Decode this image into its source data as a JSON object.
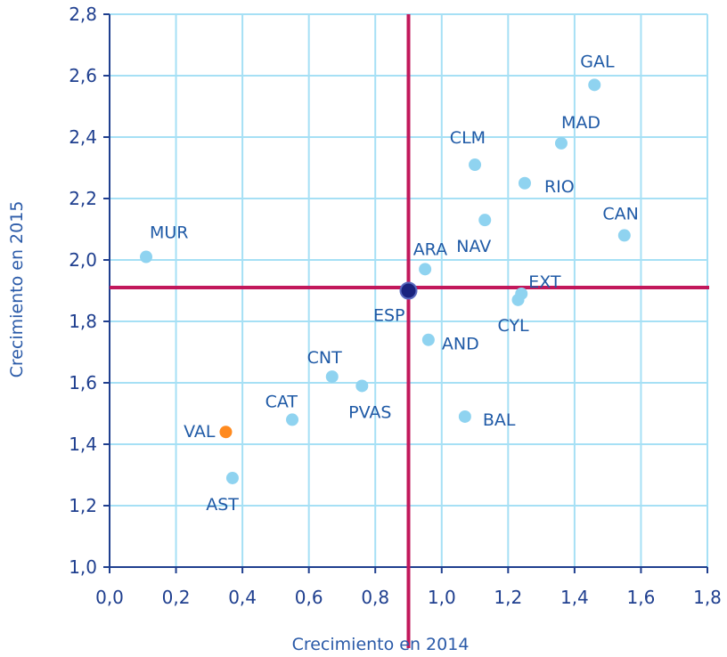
{
  "chart_data": {
    "type": "scatter",
    "xlabel": "Crecimiento en 2014",
    "ylabel": "Crecimiento en 2015",
    "xlim": [
      0.0,
      1.8
    ],
    "ylim": [
      1.0,
      2.8
    ],
    "xticks": [
      "0,0",
      "0,2",
      "0,4",
      "0,6",
      "0,8",
      "1,0",
      "1,2",
      "1,4",
      "1,6",
      "1,8"
    ],
    "yticks": [
      "1,0",
      "1,2",
      "1,4",
      "1,6",
      "1,8",
      "2,0",
      "2,2",
      "2,4",
      "2,6",
      "2,8"
    ],
    "grid": true,
    "reference_lines": {
      "x": 0.9,
      "y": 1.91,
      "color": "#c2185b"
    },
    "colors": {
      "point": "#8fd3f0",
      "highlight": "#ff8a1f",
      "reference_point": "#1a237e",
      "grid": "#a6e0f5",
      "axis": "#1f3f8f"
    },
    "points": [
      {
        "label": "GAL",
        "x": 1.46,
        "y": 2.57,
        "anchor": "start",
        "dx": -16,
        "dy": -20
      },
      {
        "label": "MAD",
        "x": 1.36,
        "y": 2.38,
        "anchor": "start",
        "dx": 0,
        "dy": -17
      },
      {
        "label": "CLM",
        "x": 1.1,
        "y": 2.31,
        "anchor": "end",
        "dx": 12,
        "dy": -24
      },
      {
        "label": "RIO",
        "x": 1.25,
        "y": 2.25,
        "anchor": "start",
        "dx": 22,
        "dy": 10
      },
      {
        "label": "CAN",
        "x": 1.55,
        "y": 2.08,
        "anchor": "end",
        "dx": 16,
        "dy": -18
      },
      {
        "label": "NAV",
        "x": 1.13,
        "y": 2.13,
        "anchor": "end",
        "dx": 7,
        "dy": 36
      },
      {
        "label": "MUR",
        "x": 0.11,
        "y": 2.01,
        "anchor": "start",
        "dx": 4,
        "dy": -21
      },
      {
        "label": "ARA",
        "x": 0.95,
        "y": 1.97,
        "anchor": "end",
        "dx": 25,
        "dy": -16
      },
      {
        "label": "EXT",
        "x": 1.24,
        "y": 1.89,
        "anchor": "start",
        "dx": 8,
        "dy": -7
      },
      {
        "label": "CYL",
        "x": 1.23,
        "y": 1.87,
        "anchor": "start",
        "dx": -23,
        "dy": 35
      },
      {
        "label": "ESP",
        "x": 0.9,
        "y": 1.9,
        "anchor": "end",
        "dx": -4,
        "dy": 34,
        "type": "reference"
      },
      {
        "label": "AND",
        "x": 0.96,
        "y": 1.74,
        "anchor": "start",
        "dx": 15,
        "dy": 11
      },
      {
        "label": "CNT",
        "x": 0.67,
        "y": 1.62,
        "anchor": "end",
        "dx": 11,
        "dy": -15
      },
      {
        "label": "PVAS",
        "x": 0.76,
        "y": 1.59,
        "anchor": "middle",
        "dx": 9,
        "dy": 36
      },
      {
        "label": "CAT",
        "x": 0.55,
        "y": 1.48,
        "anchor": "end",
        "dx": 6,
        "dy": -14
      },
      {
        "label": "BAL",
        "x": 1.07,
        "y": 1.49,
        "anchor": "start",
        "dx": 20,
        "dy": 10
      },
      {
        "label": "VAL",
        "x": 0.35,
        "y": 1.44,
        "anchor": "end",
        "dx": -12,
        "dy": 6,
        "type": "highlight"
      },
      {
        "label": "AST",
        "x": 0.37,
        "y": 1.29,
        "anchor": "end",
        "dx": 7,
        "dy": 36
      }
    ]
  }
}
